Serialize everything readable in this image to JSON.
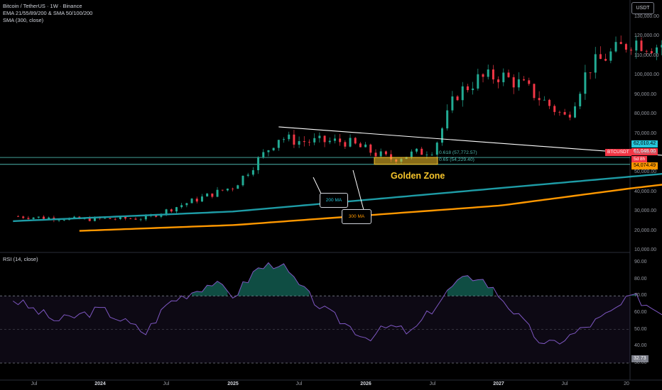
{
  "legend": {
    "title": "Bitcoin / TetherUS · 1W · Binance",
    "line2": "EMA 21/55/89/200 & SMA 50/100/200",
    "line3": "SMA (300, close)"
  },
  "currency_button": "USDT",
  "price_tags": {
    "ma200": "62,010.42",
    "last": "61,048.00",
    "countdown": "5d 8h",
    "ma300": "54,074.49",
    "symbol": "BTCUSDT",
    "rsi": "32.73"
  },
  "fib": {
    "level_618": "0.618 (57,772.57)",
    "level_65": "0.65 (54,229.40)"
  },
  "annotations": {
    "golden_zone": "Golden Zone",
    "ma200_label": "200 MA",
    "ma300_label": "300 MA"
  },
  "rsi_title": "RSI (14, close)",
  "colors": {
    "up": "#22ab94",
    "down": "#f23645",
    "ma200": "#1e9ca6",
    "ma300": "#ff9800",
    "rsi_line": "#7e57c2",
    "golden_zone": "#f7c52b"
  },
  "chart_data": {
    "type": "candlestick",
    "symbol": "BTCUSDT",
    "interval": "1W",
    "x_axis_ticks": [
      "Jul",
      "2024",
      "Jul",
      "2025",
      "Jul",
      "2026",
      "Jul",
      "2027",
      "Jul",
      "20"
    ],
    "price_axis_ticks": [
      "130,000.00",
      "120,000.00",
      "110,000.00",
      "100,000.00",
      "90,000.00",
      "80,000.00",
      "70,000.00",
      "60,000.00",
      "50,000.00",
      "40,000.00",
      "30,000.00",
      "20,000.00",
      "10,000.00"
    ],
    "price_ylim": [
      10000,
      130000
    ],
    "rsi_axis_ticks": [
      "90.00",
      "80.00",
      "70.00",
      "60.00",
      "50.00",
      "40.00",
      "30.00"
    ],
    "rsi_ylim": [
      30,
      90
    ],
    "rsi_band": [
      30,
      70
    ],
    "price_anchors": [
      [
        "2023-03",
        27500
      ],
      [
        "2023-06",
        26000
      ],
      [
        "2023-09",
        26500
      ],
      [
        "2023-11",
        35000
      ],
      [
        "2024-01",
        43000
      ],
      [
        "2024-03",
        68000
      ],
      [
        "2024-04",
        66000
      ],
      [
        "2024-06",
        66000
      ],
      [
        "2024-08",
        57000
      ],
      [
        "2024-10",
        62000
      ],
      [
        "2024-11",
        90000
      ],
      [
        "2024-12",
        98000
      ],
      [
        "2025-01",
        100000
      ],
      [
        "2025-02",
        95000
      ],
      [
        "2025-04",
        78000
      ],
      [
        "2025-05",
        104000
      ],
      [
        "2025-07",
        118000
      ],
      [
        "2025-08",
        115000
      ],
      [
        "2025-10",
        122000
      ],
      [
        "2025-11",
        100000
      ],
      [
        "2025-12",
        88000
      ],
      [
        "2026-01",
        90000
      ],
      [
        "2026-02",
        70000
      ],
      [
        "2026-03",
        68000
      ],
      [
        "2026-04",
        78000
      ],
      [
        "2026-05",
        80000
      ],
      [
        "2026-06",
        61048
      ]
    ],
    "ma200": [
      [
        "2023-03",
        25000
      ],
      [
        "2024-01",
        30000
      ],
      [
        "2025-01",
        42000
      ],
      [
        "2025-07",
        48000
      ],
      [
        "2026-01",
        54000
      ],
      [
        "2026-06",
        62010.42
      ]
    ],
    "ma300": [
      [
        "2023-06",
        20000
      ],
      [
        "2024-01",
        23000
      ],
      [
        "2025-01",
        33000
      ],
      [
        "2025-07",
        42000
      ],
      [
        "2026-01",
        50000
      ],
      [
        "2026-06",
        54074.49
      ]
    ],
    "trendline": [
      [
        "2024-03",
        73500
      ],
      [
        "2026-11",
        46500
      ]
    ],
    "horizontal_levels": [
      57772.57,
      54229.4
    ],
    "rsi_anchors": [
      [
        "2023-03",
        68
      ],
      [
        "2023-05",
        55
      ],
      [
        "2023-07",
        62
      ],
      [
        "2023-09",
        48
      ],
      [
        "2023-10",
        66
      ],
      [
        "2023-12",
        78
      ],
      [
        "2024-01",
        70
      ],
      [
        "2024-02",
        86
      ],
      [
        "2024-03",
        90
      ],
      [
        "2024-04",
        75
      ],
      [
        "2024-05",
        62
      ],
      [
        "2024-07",
        45
      ],
      [
        "2024-08",
        52
      ],
      [
        "2024-09",
        48
      ],
      [
        "2024-11",
        78
      ],
      [
        "2024-12",
        82
      ],
      [
        "2025-01",
        70
      ],
      [
        "2025-03",
        40
      ],
      [
        "2025-04",
        45
      ],
      [
        "2025-06",
        60
      ],
      [
        "2025-07",
        70
      ],
      [
        "2025-08",
        62
      ],
      [
        "2025-10",
        58
      ],
      [
        "2025-11",
        38
      ],
      [
        "2025-12",
        42
      ],
      [
        "2026-01",
        38
      ],
      [
        "2026-02",
        28
      ],
      [
        "2026-03",
        35
      ],
      [
        "2026-04",
        42
      ],
      [
        "2026-05",
        51
      ],
      [
        "2026-06",
        32.73
      ]
    ]
  }
}
